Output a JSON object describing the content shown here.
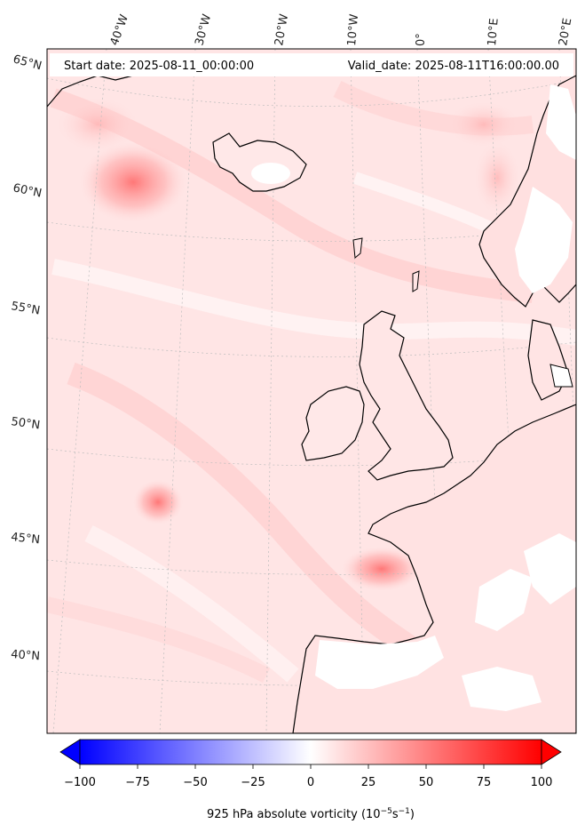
{
  "header": {
    "start_date": "Start date: 2025-08-11_00:00:00",
    "valid_date": "Valid_date: 2025-08-11T16:00:00.00"
  },
  "longitude_labels": [
    "40°W",
    "30°W",
    "20°W",
    "10°W",
    "0°",
    "10°E",
    "20°E"
  ],
  "latitude_labels": [
    "65°N",
    "60°N",
    "55°N",
    "50°N",
    "45°N",
    "40°N"
  ],
  "colorbar": {
    "ticks": [
      -100,
      -75,
      -50,
      -25,
      0,
      25,
      50,
      75,
      100
    ],
    "tick_labels": [
      "−100",
      "−75",
      "−50",
      "−25",
      "0",
      "25",
      "50",
      "75",
      "100"
    ],
    "min": -100,
    "max": 100,
    "label_prefix": "925 hPa absolute vorticity (10",
    "label_exp1": "−5",
    "label_mid": "s",
    "label_exp2": "−1",
    "label_suffix": ")",
    "colors": {
      "negative": "#0000ff",
      "zero": "#ffffff",
      "positive": "#ff0000"
    }
  },
  "map": {
    "field_color": "#ffe6e6",
    "coastline_color": "#000000",
    "gridline_color": "#bdbdbd"
  }
}
